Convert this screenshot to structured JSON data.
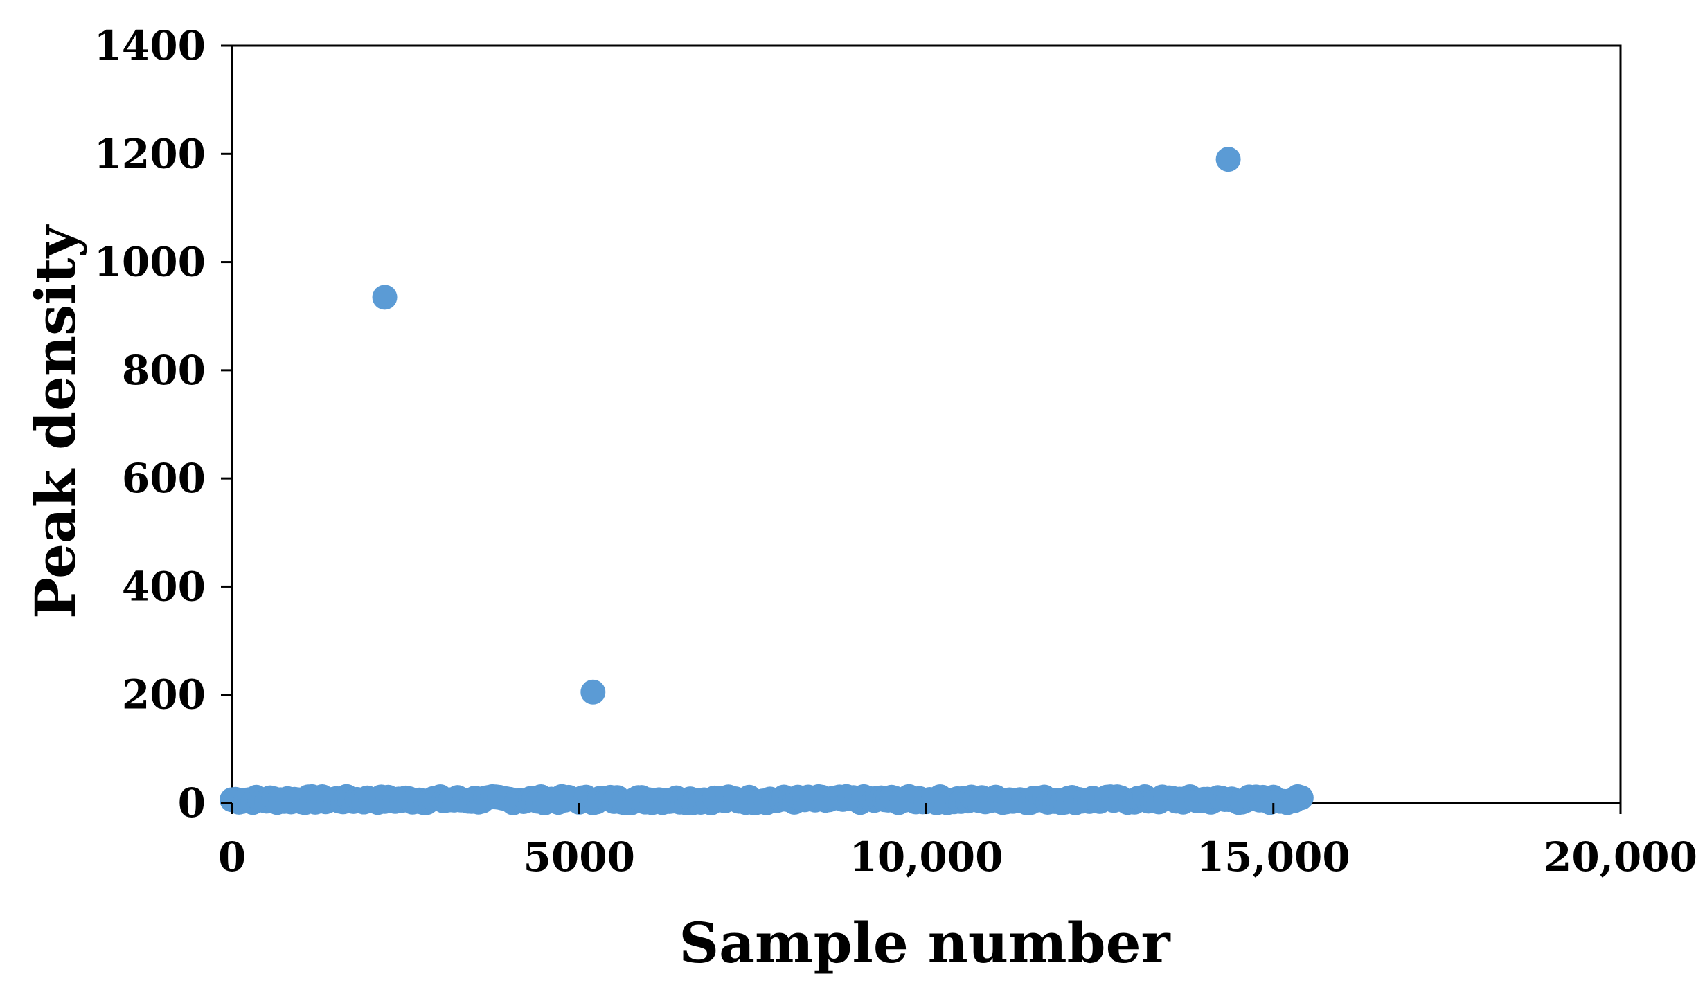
{
  "chart_data": {
    "type": "scatter",
    "title": "",
    "xlabel": "Sample number",
    "ylabel": "Peak density",
    "xlim": [
      0,
      20000
    ],
    "ylim": [
      0,
      1400
    ],
    "x_ticks": [
      {
        "value": 0,
        "label": "0"
      },
      {
        "value": 5000,
        "label": "5000"
      },
      {
        "value": 10000,
        "label": "10,000"
      },
      {
        "value": 15000,
        "label": "15,000"
      },
      {
        "value": 20000,
        "label": "20,000"
      }
    ],
    "y_ticks": [
      {
        "value": 0,
        "label": "0"
      },
      {
        "value": 200,
        "label": "200"
      },
      {
        "value": 400,
        "label": "400"
      },
      {
        "value": 600,
        "label": "600"
      },
      {
        "value": 800,
        "label": "800"
      },
      {
        "value": 1000,
        "label": "1000"
      },
      {
        "value": 1200,
        "label": "1200"
      },
      {
        "value": 1400,
        "label": "1400"
      }
    ],
    "grid": false,
    "legend": "none",
    "marker_color": "#5b9bd5",
    "series": [
      {
        "outliers": [
          {
            "x": 2200,
            "y": 935
          },
          {
            "x": 5200,
            "y": 205
          },
          {
            "x": 14350,
            "y": 1190
          }
        ],
        "baseline": {
          "x_start": 0,
          "x_end": 15400,
          "y": 0,
          "y_max": 12,
          "step": 50
        }
      }
    ]
  }
}
